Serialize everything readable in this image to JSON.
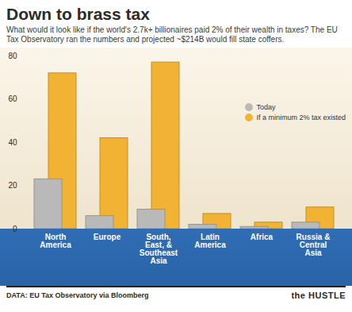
{
  "chart_data": {
    "type": "bar",
    "title": "Down to brass tax",
    "subtitle": "What would it look like if the world's 2.7k+ billionaires paid 2% of their wealth in taxes? The EU Tax Observatory ran the numbers and projected ~$214B would fill state coffers.",
    "categories": [
      "North America",
      "Europe",
      "South, East, & Southeast Asia",
      "Latin America",
      "Africa",
      "Russia & Central Asia"
    ],
    "series": [
      {
        "name": "Today",
        "color": "#b9b9b9",
        "values": [
          23,
          6,
          9,
          2,
          1,
          3
        ]
      },
      {
        "name": "If a minimum 2% tax existed",
        "color": "#f2b233",
        "values": [
          72,
          42,
          77,
          7,
          3,
          10
        ]
      }
    ],
    "ylim": [
      0,
      80
    ],
    "yticks": [
      0,
      20,
      40,
      60,
      80
    ],
    "grid": false,
    "legend": "right",
    "source": "DATA: EU Tax Observatory via Bloomberg",
    "brand": "the HUSTLE"
  }
}
